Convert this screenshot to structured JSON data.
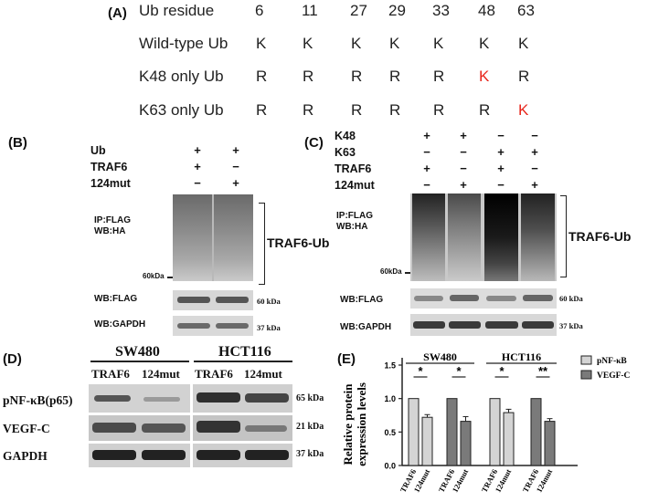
{
  "panelA": {
    "label": "(A)",
    "header": "Ub residue",
    "residues": [
      "6",
      "11",
      "27",
      "29",
      "33",
      "48",
      "63"
    ],
    "rows": [
      {
        "name": "Wild-type Ub",
        "cells": [
          "K",
          "K",
          "K",
          "K",
          "K",
          "K",
          "K"
        ],
        "red": []
      },
      {
        "name": "K48 only Ub",
        "cells": [
          "R",
          "R",
          "R",
          "R",
          "R",
          "K",
          "R"
        ],
        "red": [
          5
        ]
      },
      {
        "name": "K63 only Ub",
        "cells": [
          "R",
          "R",
          "R",
          "R",
          "R",
          "R",
          "K"
        ],
        "red": [
          6
        ]
      }
    ],
    "red_color": "#e8261c"
  },
  "panelB": {
    "label": "(B)",
    "cond_names": [
      "Ub",
      "TRAF6",
      "124mut"
    ],
    "cond_signs": [
      [
        "+",
        "+"
      ],
      [
        "+",
        "−"
      ],
      [
        "−",
        "+"
      ]
    ],
    "ip_label": [
      "IP:FLAG",
      "WB:HA"
    ],
    "bracket_label": "TRAF6-Ub",
    "marker": "60kDa",
    "wb_flag": "WB:FLAG",
    "wb_gapdh": "WB:GAPDH",
    "kda_flag": "60 kDa",
    "kda_gapdh": "37 kDa"
  },
  "panelC": {
    "label": "(C)",
    "cond_names": [
      "K48",
      "K63",
      "TRAF6",
      "124mut"
    ],
    "cond_signs": [
      [
        "+",
        "+",
        "−",
        "−"
      ],
      [
        "−",
        "−",
        "+",
        "+"
      ],
      [
        "+",
        "−",
        "+",
        "−"
      ],
      [
        "−",
        "+",
        "−",
        "+"
      ]
    ],
    "ip_label": [
      "IP:FLAG",
      "WB:HA"
    ],
    "bracket_label": "TRAF6-Ub",
    "marker": "60kDa",
    "wb_flag": "WB:FLAG",
    "wb_gapdh": "WB:GAPDH",
    "kda_flag": "60 kDa",
    "kda_gapdh": "37 kDa"
  },
  "panelD": {
    "label": "(D)",
    "cell_lines": [
      "SW480",
      "HCT116"
    ],
    "lanes": [
      "TRAF6",
      "124mut",
      "TRAF6",
      "124mut"
    ],
    "rows": [
      "pNF-κB(p65)",
      "VEGF-C",
      "GAPDH"
    ],
    "kda": [
      "65 kDa",
      "21 kDa",
      "37 kDa"
    ]
  },
  "panelE": {
    "label": "(E)",
    "chart_data": {
      "type": "bar",
      "ylabel": "Relative protein expression levels",
      "ylim": [
        0,
        1.5
      ],
      "yticks": [
        "0.0",
        "0.5",
        "1.0",
        "1.5"
      ],
      "groups": [
        "SW480",
        "HCT116"
      ],
      "categories": [
        "TRAF6",
        "124mut",
        "TRAF6",
        "124mut",
        "TRAF6",
        "124mut",
        "TRAF6",
        "124mut"
      ],
      "series": [
        {
          "name": "pNF-κB",
          "values": [
            1.0,
            0.72,
            null,
            null,
            1.0,
            0.79,
            null,
            null
          ],
          "errors": [
            0,
            0.04,
            0,
            0,
            0,
            0.05,
            0,
            0
          ],
          "color": "#d4d4d4"
        },
        {
          "name": "VEGF-C",
          "values": [
            null,
            null,
            1.0,
            0.66,
            null,
            null,
            1.0,
            0.66
          ],
          "errors": [
            0,
            0,
            0,
            0.07,
            0,
            0,
            0,
            0.04
          ],
          "color": "#7a7a7a"
        }
      ],
      "significance": [
        "*",
        "*",
        "*",
        "**"
      ],
      "legend": "top-right"
    }
  }
}
